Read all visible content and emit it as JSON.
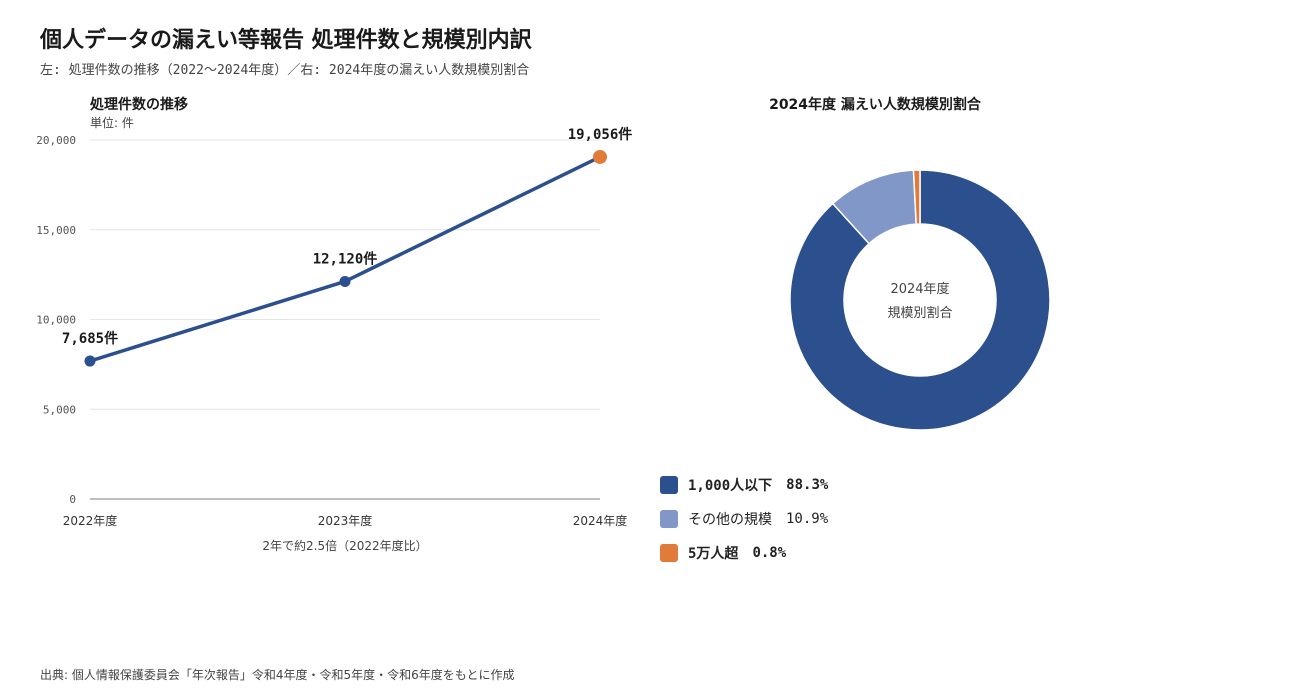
{
  "header": {
    "title": "個人データの漏えい等報告 処理件数と規模別内訳",
    "subtitle": "左: 処理件数の推移（2022〜2024年度）／右: 2024年度の漏えい人数規模別割合"
  },
  "colors": {
    "line": "#2c4f8e",
    "highlight": "#e07b39",
    "grid": "#e6e6e6",
    "axis": "#999999",
    "slice_main": "#2c4f8e",
    "slice_other": "#8097c7",
    "slice_large": "#e07b39"
  },
  "chart_data": [
    {
      "type": "line",
      "title": "処理件数の推移",
      "unit_label": "単位: 件",
      "categories": [
        "2022年度",
        "2023年度",
        "2024年度"
      ],
      "series": [
        {
          "values": [
            7685,
            12120,
            19056
          ]
        }
      ],
      "data_labels": [
        "7,685件",
        "12,120件",
        "19,056件"
      ],
      "ylim": [
        0,
        20000
      ],
      "yticks": [
        0,
        5000,
        10000,
        15000,
        20000
      ],
      "ytick_labels": [
        "0",
        "5,000",
        "10,000",
        "15,000",
        "20,000"
      ],
      "grid": true,
      "annotation": "2年で約2.5倍（2022年度比）"
    },
    {
      "type": "pie",
      "title": "2024年度 漏えい人数規模別割合",
      "center_label": [
        "2024年度",
        "規模別割合"
      ],
      "slices": [
        {
          "label": "1,000人以下",
          "value": 88.3,
          "pct_label": "88.3%",
          "color": "#2c4f8e",
          "bold": true
        },
        {
          "label": "その他の規模",
          "value": 10.9,
          "pct_label": "10.9%",
          "color": "#8097c7",
          "bold": false
        },
        {
          "label": "5万人超",
          "value": 0.8,
          "pct_label": "0.8%",
          "color": "#e07b39",
          "bold": true
        }
      ]
    }
  ],
  "footer": {
    "source": "出典: 個人情報保護委員会「年次報告」令和4年度・令和5年度・令和6年度をもとに作成"
  }
}
